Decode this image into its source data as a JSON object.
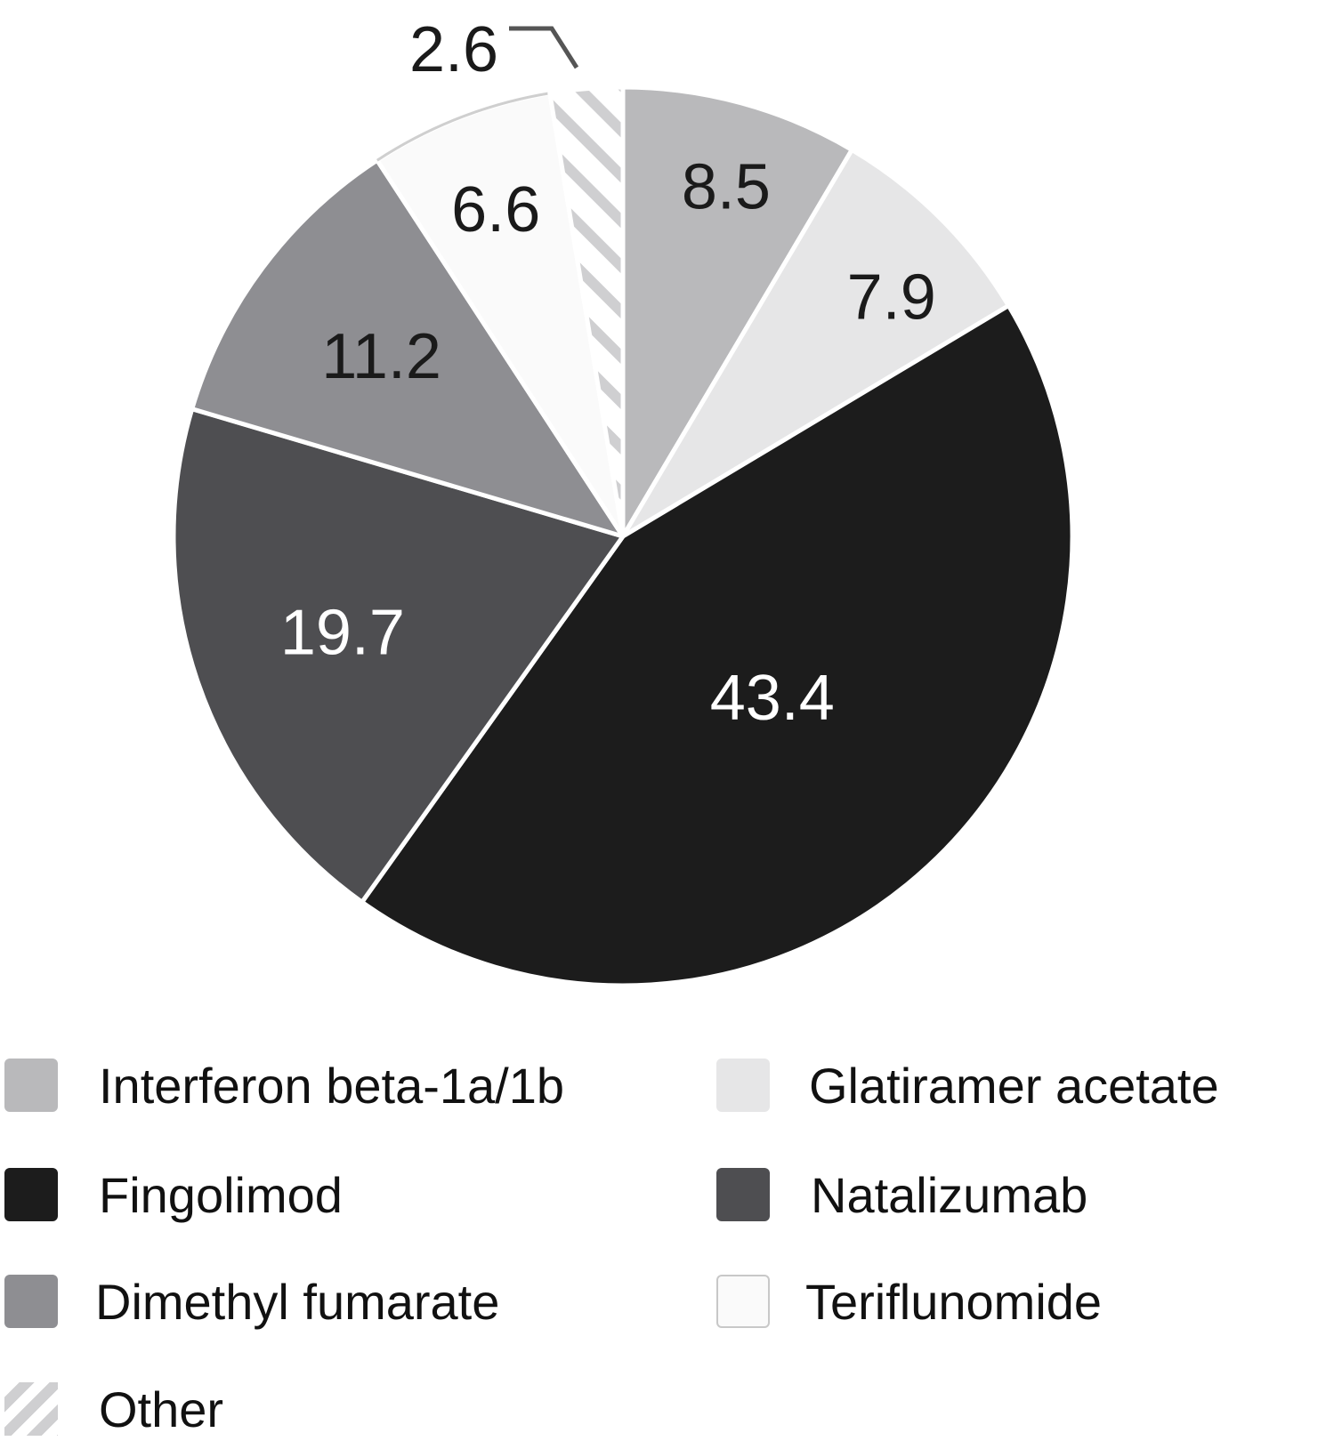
{
  "chart_data": {
    "type": "pie",
    "title": "",
    "slices": [
      {
        "name": "Interferon beta-1a/1b",
        "value": 8.5,
        "label": "8.5",
        "color": "#b9b9bb",
        "label_color": "#1a1a1a"
      },
      {
        "name": "Glatiramer acetate",
        "value": 7.9,
        "label": "7.9",
        "color": "#e6e6e7",
        "label_color": "#1a1a1a"
      },
      {
        "name": "Fingolimod",
        "value": 43.4,
        "label": "43.4",
        "color": "#1c1c1c",
        "label_color": "#ffffff"
      },
      {
        "name": "Natalizumab",
        "value": 19.7,
        "label": "19.7",
        "color": "#4e4e51",
        "label_color": "#ffffff"
      },
      {
        "name": "Dimethyl fumarate",
        "value": 11.2,
        "label": "11.2",
        "color": "#8e8e92",
        "label_color": "#1a1a1a"
      },
      {
        "name": "Teriflunomide",
        "value": 6.6,
        "label": "6.6",
        "color": "#fafafa",
        "label_color": "#1a1a1a"
      },
      {
        "name": "Other",
        "value": 2.6,
        "label": "2.6",
        "color": "hatched",
        "label_color": "#1a1a1a"
      }
    ],
    "legend": {
      "placement": "bottom",
      "items": [
        {
          "label": "Interferon beta-1a/1b",
          "swatch": "#b9b9bb"
        },
        {
          "label": "Glatiramer acetate",
          "swatch": "#e6e6e7"
        },
        {
          "label": "Fingolimod",
          "swatch": "#1c1c1c"
        },
        {
          "label": "Natalizumab",
          "swatch": "#4e4e51"
        },
        {
          "label": "Dimethyl fumarate",
          "swatch": "#8e8e92"
        },
        {
          "label": "Teriflunomide",
          "swatch": "#fafafa"
        },
        {
          "label": "Other",
          "swatch": "hatched"
        }
      ]
    }
  }
}
